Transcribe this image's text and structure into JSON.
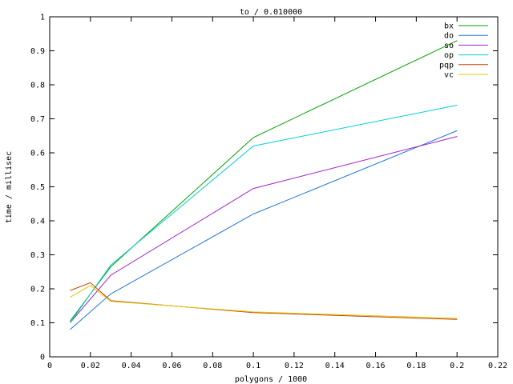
{
  "chart_data": {
    "type": "line",
    "title": "to / 0.010000",
    "xlabel": "polygons / 1000",
    "ylabel": "time / millisec",
    "xlim": [
      0,
      0.22
    ],
    "ylim": [
      0,
      1
    ],
    "xticks": [
      0,
      0.02,
      0.04,
      0.06,
      0.08,
      0.1,
      0.12,
      0.14,
      0.16,
      0.18,
      0.2,
      0.22
    ],
    "xtick_labels": [
      "0",
      "0.02",
      "0.04",
      "0.06",
      "0.08",
      "0.1",
      "0.12",
      "0.14",
      "0.16",
      "0.18",
      "0.2",
      "0.22"
    ],
    "yticks": [
      0,
      0.1,
      0.2,
      0.3,
      0.4,
      0.5,
      0.6,
      0.7,
      0.8,
      0.9,
      1
    ],
    "ytick_labels": [
      "0",
      "0.1",
      "0.2",
      "0.3",
      "0.4",
      "0.5",
      "0.6",
      "0.7",
      "0.8",
      "0.9",
      "1"
    ],
    "grid": false,
    "legend_position": "top-right",
    "series": [
      {
        "name": "bx",
        "color": "#00a000",
        "x": [
          0.01,
          0.03,
          0.1,
          0.2
        ],
        "y": [
          0.105,
          0.265,
          0.645,
          0.93
        ]
      },
      {
        "name": "do",
        "color": "#1f78d8",
        "x": [
          0.01,
          0.03,
          0.1,
          0.2
        ],
        "y": [
          0.08,
          0.185,
          0.42,
          0.665
        ]
      },
      {
        "name": "so",
        "color": "#a020d0",
        "x": [
          0.01,
          0.03,
          0.1,
          0.2
        ],
        "y": [
          0.1,
          0.24,
          0.495,
          0.648
        ]
      },
      {
        "name": "op",
        "color": "#00d0d0",
        "x": [
          0.01,
          0.03,
          0.1,
          0.2
        ],
        "y": [
          0.1,
          0.27,
          0.62,
          0.74
        ]
      },
      {
        "name": "pqp",
        "color": "#c84000",
        "x": [
          0.01,
          0.02,
          0.03,
          0.1,
          0.2
        ],
        "y": [
          0.195,
          0.218,
          0.165,
          0.13,
          0.11
        ]
      },
      {
        "name": "vc",
        "color": "#e0c800",
        "x": [
          0.01,
          0.02,
          0.03,
          0.1,
          0.2
        ],
        "y": [
          0.175,
          0.21,
          0.163,
          0.132,
          0.113
        ]
      }
    ]
  }
}
